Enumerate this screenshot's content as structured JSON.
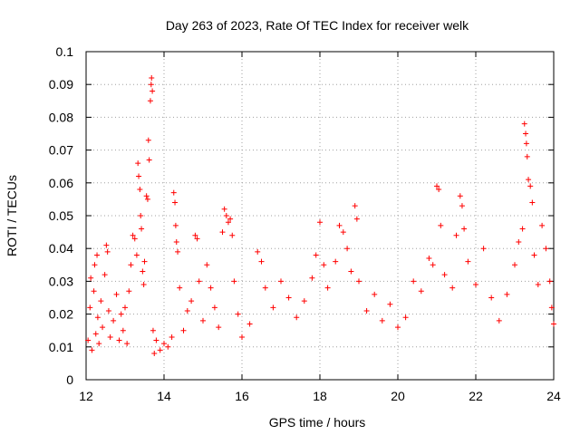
{
  "chart_data": {
    "type": "scatter",
    "title": "Day 263 of 2023, Rate Of TEC Index for receiver welk",
    "xlabel": "GPS time / hours",
    "ylabel": "ROTI / TECUs",
    "xlim": [
      12,
      24
    ],
    "ylim": [
      0,
      0.1
    ],
    "xticks": [
      "12",
      "14",
      "16",
      "18",
      "20",
      "22",
      "24"
    ],
    "yticks": [
      "0",
      "0.01",
      "0.02",
      "0.03",
      "0.04",
      "0.05",
      "0.06",
      "0.07",
      "0.08",
      "0.09",
      "0.1"
    ],
    "grid": true,
    "marker": "+",
    "color": "#ff0000",
    "series": [
      {
        "points": [
          [
            12.05,
            0.012
          ],
          [
            12.1,
            0.022
          ],
          [
            12.12,
            0.031
          ],
          [
            12.15,
            0.009
          ],
          [
            12.2,
            0.027
          ],
          [
            12.22,
            0.035
          ],
          [
            12.25,
            0.014
          ],
          [
            12.28,
            0.038
          ],
          [
            12.3,
            0.019
          ],
          [
            12.33,
            0.011
          ],
          [
            12.38,
            0.024
          ],
          [
            12.42,
            0.016
          ],
          [
            12.48,
            0.032
          ],
          [
            12.52,
            0.041
          ],
          [
            12.55,
            0.039
          ],
          [
            12.58,
            0.021
          ],
          [
            12.62,
            0.013
          ],
          [
            12.7,
            0.018
          ],
          [
            12.78,
            0.026
          ],
          [
            12.85,
            0.012
          ],
          [
            12.9,
            0.02
          ],
          [
            12.95,
            0.015
          ],
          [
            13.0,
            0.022
          ],
          [
            13.05,
            0.011
          ],
          [
            13.1,
            0.027
          ],
          [
            13.15,
            0.035
          ],
          [
            13.2,
            0.044
          ],
          [
            13.25,
            0.043
          ],
          [
            13.3,
            0.038
          ],
          [
            13.33,
            0.066
          ],
          [
            13.35,
            0.062
          ],
          [
            13.38,
            0.058
          ],
          [
            13.4,
            0.05
          ],
          [
            13.42,
            0.046
          ],
          [
            13.45,
            0.033
          ],
          [
            13.48,
            0.029
          ],
          [
            13.5,
            0.036
          ],
          [
            13.55,
            0.056
          ],
          [
            13.58,
            0.055
          ],
          [
            13.6,
            0.073
          ],
          [
            13.62,
            0.067
          ],
          [
            13.65,
            0.085
          ],
          [
            13.67,
            0.09
          ],
          [
            13.68,
            0.092
          ],
          [
            13.7,
            0.088
          ],
          [
            13.72,
            0.015
          ],
          [
            13.75,
            0.008
          ],
          [
            13.8,
            0.012
          ],
          [
            13.9,
            0.009
          ],
          [
            14.0,
            0.011
          ],
          [
            14.1,
            0.01
          ],
          [
            14.2,
            0.013
          ],
          [
            14.25,
            0.057
          ],
          [
            14.28,
            0.054
          ],
          [
            14.3,
            0.047
          ],
          [
            14.32,
            0.042
          ],
          [
            14.35,
            0.039
          ],
          [
            14.4,
            0.028
          ],
          [
            14.5,
            0.015
          ],
          [
            14.6,
            0.021
          ],
          [
            14.7,
            0.024
          ],
          [
            14.8,
            0.044
          ],
          [
            14.85,
            0.043
          ],
          [
            14.9,
            0.03
          ],
          [
            15.0,
            0.018
          ],
          [
            15.1,
            0.035
          ],
          [
            15.2,
            0.028
          ],
          [
            15.3,
            0.022
          ],
          [
            15.4,
            0.016
          ],
          [
            15.5,
            0.045
          ],
          [
            15.55,
            0.052
          ],
          [
            15.6,
            0.05
          ],
          [
            15.65,
            0.048
          ],
          [
            15.7,
            0.049
          ],
          [
            15.75,
            0.044
          ],
          [
            15.8,
            0.03
          ],
          [
            15.9,
            0.02
          ],
          [
            16.0,
            0.013
          ],
          [
            16.2,
            0.017
          ],
          [
            16.4,
            0.039
          ],
          [
            16.5,
            0.036
          ],
          [
            16.6,
            0.028
          ],
          [
            16.8,
            0.022
          ],
          [
            17.0,
            0.03
          ],
          [
            17.2,
            0.025
          ],
          [
            17.4,
            0.019
          ],
          [
            17.6,
            0.024
          ],
          [
            17.8,
            0.031
          ],
          [
            17.9,
            0.038
          ],
          [
            18.0,
            0.048
          ],
          [
            18.1,
            0.035
          ],
          [
            18.2,
            0.028
          ],
          [
            18.4,
            0.036
          ],
          [
            18.5,
            0.047
          ],
          [
            18.6,
            0.045
          ],
          [
            18.7,
            0.04
          ],
          [
            18.8,
            0.033
          ],
          [
            18.9,
            0.053
          ],
          [
            18.95,
            0.049
          ],
          [
            19.0,
            0.03
          ],
          [
            19.2,
            0.021
          ],
          [
            19.4,
            0.026
          ],
          [
            19.6,
            0.018
          ],
          [
            19.8,
            0.023
          ],
          [
            20.0,
            0.016
          ],
          [
            20.2,
            0.019
          ],
          [
            20.4,
            0.03
          ],
          [
            20.6,
            0.027
          ],
          [
            20.8,
            0.037
          ],
          [
            20.9,
            0.035
          ],
          [
            21.0,
            0.059
          ],
          [
            21.05,
            0.058
          ],
          [
            21.1,
            0.047
          ],
          [
            21.2,
            0.032
          ],
          [
            21.4,
            0.028
          ],
          [
            21.5,
            0.044
          ],
          [
            21.6,
            0.056
          ],
          [
            21.65,
            0.053
          ],
          [
            21.7,
            0.046
          ],
          [
            21.8,
            0.036
          ],
          [
            22.0,
            0.029
          ],
          [
            22.2,
            0.04
          ],
          [
            22.4,
            0.025
          ],
          [
            22.6,
            0.018
          ],
          [
            22.8,
            0.026
          ],
          [
            23.0,
            0.035
          ],
          [
            23.1,
            0.042
          ],
          [
            23.2,
            0.046
          ],
          [
            23.25,
            0.078
          ],
          [
            23.28,
            0.075
          ],
          [
            23.3,
            0.072
          ],
          [
            23.32,
            0.068
          ],
          [
            23.35,
            0.061
          ],
          [
            23.4,
            0.059
          ],
          [
            23.45,
            0.054
          ],
          [
            23.5,
            0.038
          ],
          [
            23.6,
            0.029
          ],
          [
            23.7,
            0.047
          ],
          [
            23.8,
            0.04
          ],
          [
            23.9,
            0.03
          ],
          [
            23.95,
            0.022
          ],
          [
            24.0,
            0.017
          ]
        ]
      }
    ]
  }
}
